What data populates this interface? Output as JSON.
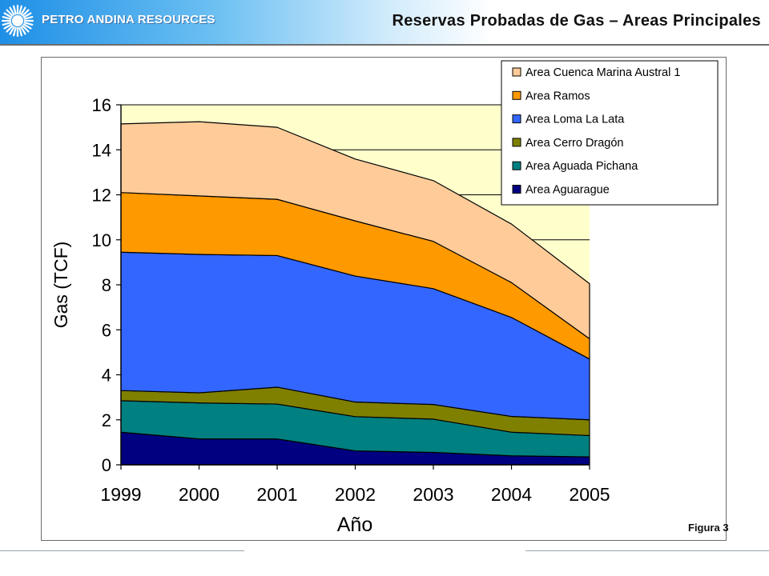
{
  "header": {
    "company": "PETRO ANDINA RESOURCES",
    "title": "Reservas Probadas de Gas – Areas Principales"
  },
  "figure_label": "Figura 3",
  "chart_data": {
    "type": "area",
    "stacked": true,
    "categories": [
      "1999",
      "2000",
      "2001",
      "2002",
      "2003",
      "2004",
      "2005"
    ],
    "xlabel": "Año",
    "ylabel": "Gas (TCF)",
    "ylim": [
      0,
      16
    ],
    "yticks": [
      "0",
      "2",
      "4",
      "6",
      "8",
      "10",
      "12",
      "14",
      "16"
    ],
    "grid": true,
    "legend_position": "top-right",
    "plot_background": "#ffffcc",
    "series": [
      {
        "name": "Area Aguarague",
        "color": "#000080",
        "values": [
          1.45,
          1.15,
          1.15,
          0.62,
          0.55,
          0.4,
          0.35
        ]
      },
      {
        "name": "Area Aguada Pichana",
        "color": "#008080",
        "values": [
          1.4,
          1.6,
          1.55,
          1.52,
          1.48,
          1.05,
          0.95
        ]
      },
      {
        "name": "Area Cerro Dragón",
        "color": "#808000",
        "values": [
          0.45,
          0.45,
          0.75,
          0.65,
          0.65,
          0.7,
          0.7
        ]
      },
      {
        "name": "Area Loma La Lata",
        "color": "#3366ff",
        "values": [
          6.15,
          6.15,
          5.85,
          5.6,
          5.15,
          4.4,
          2.7
        ]
      },
      {
        "name": "Area Ramos",
        "color": "#ff9900",
        "values": [
          2.65,
          2.6,
          2.5,
          2.45,
          2.1,
          1.55,
          0.9
        ]
      },
      {
        "name": "Area Cuenca Marina Austral 1",
        "color": "#ffcc99",
        "values": [
          3.05,
          3.3,
          3.2,
          2.75,
          2.7,
          2.6,
          2.45
        ]
      }
    ]
  },
  "colors": {
    "header_gradient_start": "#1e8fe6",
    "plot_background": "#ffffcc"
  }
}
